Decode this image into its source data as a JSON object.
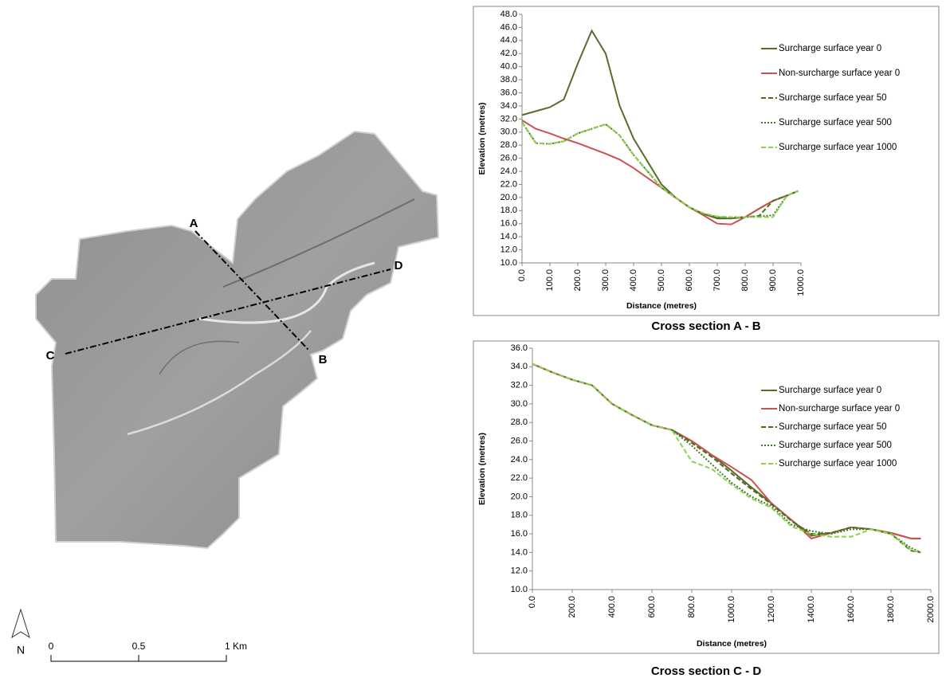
{
  "map": {
    "labels": [
      "A",
      "B",
      "C",
      "D"
    ],
    "north": "N",
    "scale": [
      "0",
      "0.5",
      "1 Km"
    ]
  },
  "chart_data": [
    {
      "type": "line",
      "title": "Cross section A - B",
      "x_label": "Distance (metres)",
      "y_label": "Elevation (metres)",
      "x": [
        0,
        50,
        100,
        150,
        200,
        250,
        300,
        350,
        400,
        450,
        500,
        550,
        600,
        650,
        700,
        750,
        800,
        850,
        900,
        950,
        990
      ],
      "series": [
        {
          "name": "Surcharge surface year 0",
          "color": "#5b6b2c",
          "dash": "solid",
          "values": [
            32.6,
            33.2,
            33.8,
            35,
            40.5,
            45.5,
            42,
            34,
            29,
            25.5,
            22,
            20,
            18.5,
            17.5,
            16.8,
            16.8,
            17,
            18.3,
            19.5,
            20.3,
            21
          ]
        },
        {
          "name": "Non-surcharge surface year 0",
          "color": "#c9534f",
          "dash": "solid",
          "values": [
            31.8,
            30.5,
            29.8,
            29,
            28.3,
            27.5,
            26.7,
            25.8,
            24.5,
            23,
            21.5,
            20,
            18.5,
            17.3,
            16,
            15.9,
            17,
            18.3,
            19.5,
            20.3,
            21
          ]
        },
        {
          "name": "Surcharge surface year 50",
          "color": "#4f6b1f",
          "dash": "dashed",
          "values": [
            31.5,
            28.3,
            28.2,
            28.6,
            29.8,
            30.5,
            31.2,
            29.5,
            26.5,
            24,
            21.5,
            20,
            18.5,
            17.5,
            17,
            17,
            17,
            17.2,
            19.5,
            20.3,
            21
          ]
        },
        {
          "name": "Surcharge surface year 500",
          "color": "#3f7d2a",
          "dash": "dotted",
          "values": [
            31.5,
            28.3,
            28.2,
            28.6,
            29.8,
            30.5,
            31.2,
            29.5,
            26.5,
            24,
            21.5,
            20,
            18.5,
            17.5,
            17,
            17,
            17,
            17.1,
            17.3,
            20.3,
            21
          ]
        },
        {
          "name": "Surcharge surface year 1000",
          "color": "#8fd14f",
          "dash": "dashed",
          "values": [
            31.5,
            28.3,
            28.2,
            28.6,
            29.8,
            30.5,
            31.2,
            29.5,
            26.5,
            24,
            21.5,
            20,
            18.5,
            17.6,
            17.1,
            17,
            17,
            17,
            17,
            20.3,
            21
          ]
        }
      ],
      "xlim": [
        0,
        1000
      ],
      "xticks": [
        {
          "value": 0,
          "label": "0.0"
        },
        {
          "value": 100,
          "label": "100.0"
        },
        {
          "value": 200,
          "label": "200.0"
        },
        {
          "value": 300,
          "label": "300.0"
        },
        {
          "value": 400,
          "label": "400.0"
        },
        {
          "value": 500,
          "label": "500.0"
        },
        {
          "value": 600,
          "label": "600.0"
        },
        {
          "value": 700,
          "label": "700.0"
        },
        {
          "value": 800,
          "label": "800.0"
        },
        {
          "value": 900,
          "label": "900.0"
        },
        {
          "value": 1000,
          "label": "1000.0"
        }
      ],
      "ylim": [
        10,
        48
      ],
      "yticks": [
        {
          "value": 10,
          "label": "10.0"
        },
        {
          "value": 12,
          "label": "12.0"
        },
        {
          "value": 14,
          "label": "14.0"
        },
        {
          "value": 16,
          "label": "16.0"
        },
        {
          "value": 18,
          "label": "18.0"
        },
        {
          "value": 20,
          "label": "20.0"
        },
        {
          "value": 22,
          "label": "22.0"
        },
        {
          "value": 24,
          "label": "24.0"
        },
        {
          "value": 26,
          "label": "26.0"
        },
        {
          "value": 28,
          "label": "28.0"
        },
        {
          "value": 30,
          "label": "30.0"
        },
        {
          "value": 32,
          "label": "32.0"
        },
        {
          "value": 34,
          "label": "34.0"
        },
        {
          "value": 36,
          "label": "36.0"
        },
        {
          "value": 38,
          "label": "38.0"
        },
        {
          "value": 40,
          "label": "40.0"
        },
        {
          "value": 42,
          "label": "42.0"
        },
        {
          "value": 44,
          "label": "44.0"
        },
        {
          "value": 46,
          "label": "46.0"
        },
        {
          "value": 48,
          "label": "48.0"
        }
      ]
    },
    {
      "type": "line",
      "title": "Cross section C - D",
      "x_label": "Distance (metres)",
      "y_label": "Elevation (metres)",
      "x": [
        0,
        100,
        200,
        300,
        400,
        500,
        600,
        700,
        800,
        900,
        1000,
        1100,
        1200,
        1300,
        1400,
        1500,
        1600,
        1700,
        1800,
        1900,
        1950
      ],
      "series": [
        {
          "name": "Surcharge surface year 0",
          "color": "#5b6b2c",
          "dash": "solid",
          "values": [
            34.3,
            33.4,
            32.6,
            32,
            30,
            28.8,
            27.7,
            27.2,
            26,
            24.5,
            22.8,
            21,
            19.3,
            17.5,
            15.8,
            16.1,
            16.7,
            16.5,
            16.1,
            15.5,
            15.5
          ]
        },
        {
          "name": "Non-surcharge surface year 0",
          "color": "#c9534f",
          "dash": "solid",
          "values": [
            34.3,
            33.4,
            32.6,
            32,
            30,
            28.8,
            27.7,
            27.2,
            26,
            24.5,
            23.2,
            21.8,
            19.3,
            17.5,
            15.5,
            16.1,
            16.7,
            16.5,
            16.1,
            15.5,
            15.5
          ]
        },
        {
          "name": "Surcharge surface year 50",
          "color": "#4f6b1f",
          "dash": "dashed",
          "values": [
            34.3,
            33.4,
            32.6,
            32,
            30,
            28.8,
            27.7,
            27.2,
            25.8,
            24.3,
            22.5,
            20.8,
            19.2,
            17.4,
            16,
            16.1,
            16.7,
            16.5,
            16,
            14.2,
            14
          ]
        },
        {
          "name": "Surcharge surface year 500",
          "color": "#3f7d2a",
          "dash": "dotted",
          "values": [
            34.3,
            33.4,
            32.6,
            32,
            30,
            28.8,
            27.7,
            27.2,
            25.5,
            23.5,
            21.5,
            20,
            19,
            17,
            16.3,
            16,
            16.5,
            16.5,
            16,
            14.5,
            14
          ]
        },
        {
          "name": "Surcharge surface year 1000",
          "color": "#8fd14f",
          "dash": "dashed",
          "values": [
            34.3,
            33.4,
            32.6,
            32,
            30,
            28.8,
            27.7,
            27.2,
            23.8,
            23,
            21.3,
            19.8,
            18.8,
            16.8,
            16,
            15.7,
            15.7,
            16.5,
            16,
            14.3,
            14
          ]
        }
      ],
      "xlim": [
        0,
        2000
      ],
      "xticks": [
        {
          "value": 0,
          "label": "0.0"
        },
        {
          "value": 200,
          "label": "200.0"
        },
        {
          "value": 400,
          "label": "400.0"
        },
        {
          "value": 600,
          "label": "600.0"
        },
        {
          "value": 800,
          "label": "800.0"
        },
        {
          "value": 1000,
          "label": "1000.0"
        },
        {
          "value": 1200,
          "label": "1200.0"
        },
        {
          "value": 1400,
          "label": "1400.0"
        },
        {
          "value": 1600,
          "label": "1600.0"
        },
        {
          "value": 1800,
          "label": "1800.0"
        },
        {
          "value": 2000,
          "label": "2000.0"
        }
      ],
      "ylim": [
        10,
        36
      ],
      "yticks": [
        {
          "value": 10,
          "label": "10.0"
        },
        {
          "value": 12,
          "label": "12.0"
        },
        {
          "value": 14,
          "label": "14.0"
        },
        {
          "value": 16,
          "label": "16.0"
        },
        {
          "value": 18,
          "label": "18.0"
        },
        {
          "value": 20,
          "label": "20.0"
        },
        {
          "value": 22,
          "label": "22.0"
        },
        {
          "value": 24,
          "label": "24.0"
        },
        {
          "value": 26,
          "label": "26.0"
        },
        {
          "value": 28,
          "label": "28.0"
        },
        {
          "value": 30,
          "label": "30.0"
        },
        {
          "value": 32,
          "label": "32.0"
        },
        {
          "value": 34,
          "label": "34.0"
        },
        {
          "value": 36,
          "label": "36.0"
        }
      ]
    }
  ]
}
